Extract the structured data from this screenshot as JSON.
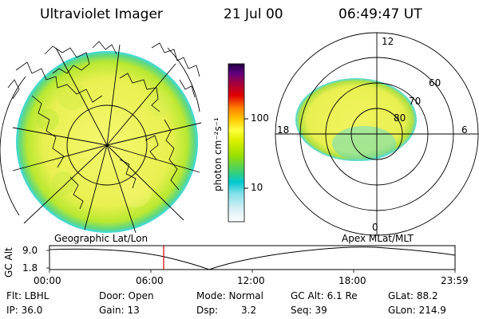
{
  "header": {
    "title": "Ultraviolet Imager",
    "date": "21 Jul 00",
    "time": "06:49:47 UT"
  },
  "colorbar": {
    "unit_label": "photon cm⁻²s⁻¹",
    "ticks": [
      "100",
      "10"
    ],
    "colors": [
      "#ffffff",
      "#d8f0f5",
      "#7fe0e8",
      "#00c8d0",
      "#40d070",
      "#9be000",
      "#e0f000",
      "#ffff40",
      "#ffc800",
      "#ff8000",
      "#e00000",
      "#a00040",
      "#600080",
      "#200040"
    ]
  },
  "polar_plot": {
    "hour_labels": {
      "top": "12",
      "left": "18",
      "right": "6",
      "bottom": "0"
    },
    "lat_labels": [
      "60",
      "70",
      "80"
    ]
  },
  "altitude_plot": {
    "left_label": "Geographic Lat/Lon",
    "right_label": "Apex MLat/MLT",
    "axis_label": "GC Alt",
    "y_ticks": [
      "9.0",
      "1.8"
    ],
    "x_ticks": [
      "00:00",
      "06:00",
      "12:00",
      "18:00",
      "23:59"
    ],
    "current_time_marker": "06:49:47"
  },
  "info": {
    "filter": "Flt: LBHL",
    "ip": "IP: 36.0",
    "door": "Door: Open",
    "gain": "Gain: 13",
    "mode": "Mode: Normal",
    "dsp_label": "Dsp:",
    "dsp_value": "3.2",
    "gc_alt": "GC Alt: 6.1 Re",
    "seq": "Seq: 39",
    "glat": "GLat: 88.2",
    "glon": "GLon: 214.9"
  },
  "colors": {
    "aurora_main": "#e8f060",
    "aurora_green": "#9be020",
    "aurora_cyan": "#40d8e0",
    "marker_red": "#d00000"
  }
}
